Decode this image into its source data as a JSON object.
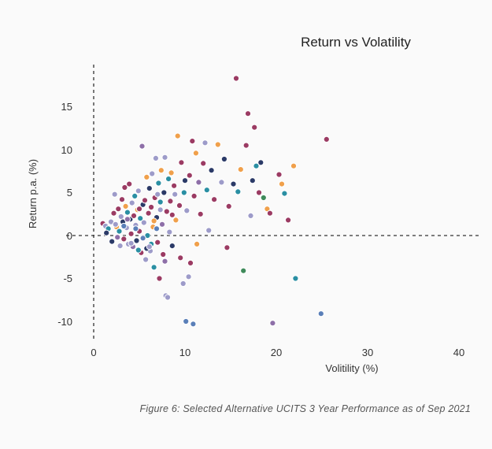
{
  "chart_data": {
    "type": "scatter",
    "title": "Return vs Volatility",
    "xlabel": "Volitility (%)",
    "ylabel": "Return p.a. (%)",
    "xlim": [
      0,
      43
    ],
    "ylim": [
      -12,
      20
    ],
    "xticks": [
      "0",
      "10",
      "20",
      "30",
      "40"
    ],
    "yticks": [
      "15",
      "10",
      "5",
      "0",
      "-5",
      "-10"
    ],
    "grid": false,
    "legend": "none",
    "colors": {
      "maroon": "#9b3b63",
      "orange": "#f0a04b",
      "navy": "#2b3a67",
      "teal": "#2a8fa3",
      "lavender": "#9d9bc9",
      "purple": "#8e6fa8",
      "green": "#3f8a5a",
      "blue": "#5a7fb8"
    },
    "points": [
      [
        1.0,
        1.4,
        "maroon"
      ],
      [
        1.3,
        1.1,
        "lavender"
      ],
      [
        1.6,
        0.8,
        "teal"
      ],
      [
        1.4,
        0.3,
        "navy"
      ],
      [
        1.9,
        1.6,
        "lavender"
      ],
      [
        2.0,
        -0.7,
        "navy"
      ],
      [
        2.2,
        2.6,
        "maroon"
      ],
      [
        2.3,
        4.8,
        "lavender"
      ],
      [
        2.5,
        1.0,
        "orange"
      ],
      [
        2.6,
        -0.2,
        "purple"
      ],
      [
        2.7,
        3.1,
        "maroon"
      ],
      [
        2.8,
        0.5,
        "teal"
      ],
      [
        2.9,
        -1.2,
        "lavender"
      ],
      [
        3.0,
        2.2,
        "lavender"
      ],
      [
        3.1,
        4.2,
        "maroon"
      ],
      [
        3.2,
        1.6,
        "navy"
      ],
      [
        3.3,
        -0.4,
        "maroon"
      ],
      [
        3.4,
        5.6,
        "maroon"
      ],
      [
        3.5,
        3.4,
        "orange"
      ],
      [
        3.6,
        0.9,
        "lavender"
      ],
      [
        3.7,
        2.7,
        "teal"
      ],
      [
        3.8,
        -1.0,
        "lavender"
      ],
      [
        3.9,
        6.0,
        "maroon"
      ],
      [
        4.0,
        1.9,
        "navy"
      ],
      [
        4.1,
        0.2,
        "maroon"
      ],
      [
        4.2,
        3.8,
        "lavender"
      ],
      [
        4.3,
        -1.3,
        "purple"
      ],
      [
        4.4,
        2.3,
        "maroon"
      ],
      [
        4.5,
        4.6,
        "teal"
      ],
      [
        4.6,
        1.2,
        "lavender"
      ],
      [
        4.7,
        -0.6,
        "navy"
      ],
      [
        4.8,
        3.0,
        "orange"
      ],
      [
        4.9,
        5.2,
        "lavender"
      ],
      [
        5.0,
        0.5,
        "maroon"
      ],
      [
        5.1,
        2.0,
        "teal"
      ],
      [
        5.2,
        -2.0,
        "maroon"
      ],
      [
        5.3,
        10.4,
        "purple"
      ],
      [
        5.4,
        3.6,
        "navy"
      ],
      [
        5.5,
        1.5,
        "lavender"
      ],
      [
        5.6,
        4.1,
        "maroon"
      ],
      [
        5.7,
        -2.8,
        "lavender"
      ],
      [
        5.8,
        6.8,
        "orange"
      ],
      [
        5.9,
        0.0,
        "teal"
      ],
      [
        6.0,
        2.6,
        "maroon"
      ],
      [
        6.1,
        5.5,
        "navy"
      ],
      [
        6.2,
        -1.8,
        "lavender"
      ],
      [
        6.3,
        3.3,
        "maroon"
      ],
      [
        6.4,
        7.2,
        "lavender"
      ],
      [
        6.5,
        1.0,
        "orange"
      ],
      [
        6.6,
        -3.7,
        "teal"
      ],
      [
        6.7,
        4.4,
        "maroon"
      ],
      [
        6.8,
        9.0,
        "lavender"
      ],
      [
        6.9,
        2.1,
        "navy"
      ],
      [
        7.0,
        -0.8,
        "maroon"
      ],
      [
        7.1,
        6.1,
        "teal"
      ],
      [
        7.2,
        -5.0,
        "maroon"
      ],
      [
        7.3,
        3.0,
        "lavender"
      ],
      [
        7.4,
        7.6,
        "orange"
      ],
      [
        7.5,
        1.3,
        "purple"
      ],
      [
        7.6,
        -2.2,
        "maroon"
      ],
      [
        7.7,
        5.0,
        "navy"
      ],
      [
        7.8,
        9.1,
        "lavender"
      ],
      [
        7.9,
        -7.0,
        "lavender"
      ],
      [
        8.0,
        2.8,
        "maroon"
      ],
      [
        8.1,
        -7.2,
        "lavender"
      ],
      [
        8.2,
        6.6,
        "teal"
      ],
      [
        8.3,
        0.4,
        "lavender"
      ],
      [
        8.4,
        4.0,
        "maroon"
      ],
      [
        8.5,
        7.3,
        "orange"
      ],
      [
        8.6,
        -1.2,
        "navy"
      ],
      [
        8.8,
        5.8,
        "maroon"
      ],
      [
        9.0,
        1.8,
        "orange"
      ],
      [
        9.2,
        11.6,
        "orange"
      ],
      [
        9.4,
        3.5,
        "maroon"
      ],
      [
        9.5,
        -2.6,
        "maroon"
      ],
      [
        9.6,
        8.5,
        "maroon"
      ],
      [
        9.8,
        -5.6,
        "lavender"
      ],
      [
        10.0,
        6.4,
        "navy"
      ],
      [
        10.1,
        -10.0,
        "blue"
      ],
      [
        10.2,
        2.9,
        "lavender"
      ],
      [
        10.4,
        -4.8,
        "lavender"
      ],
      [
        10.5,
        7.0,
        "maroon"
      ],
      [
        10.6,
        -3.2,
        "maroon"
      ],
      [
        10.8,
        11.0,
        "maroon"
      ],
      [
        10.9,
        -10.3,
        "blue"
      ],
      [
        11.0,
        4.6,
        "maroon"
      ],
      [
        11.2,
        9.6,
        "orange"
      ],
      [
        11.3,
        -1.0,
        "orange"
      ],
      [
        11.5,
        6.2,
        "purple"
      ],
      [
        11.7,
        2.5,
        "maroon"
      ],
      [
        12.0,
        8.4,
        "maroon"
      ],
      [
        12.2,
        10.8,
        "lavender"
      ],
      [
        12.4,
        5.3,
        "teal"
      ],
      [
        12.6,
        0.6,
        "lavender"
      ],
      [
        12.9,
        7.6,
        "navy"
      ],
      [
        13.2,
        4.2,
        "maroon"
      ],
      [
        13.6,
        10.6,
        "orange"
      ],
      [
        14.0,
        6.2,
        "lavender"
      ],
      [
        14.3,
        8.9,
        "navy"
      ],
      [
        14.6,
        -1.4,
        "maroon"
      ],
      [
        14.8,
        3.4,
        "maroon"
      ],
      [
        15.3,
        6.0,
        "navy"
      ],
      [
        15.6,
        18.3,
        "maroon"
      ],
      [
        15.8,
        5.1,
        "teal"
      ],
      [
        16.1,
        7.7,
        "orange"
      ],
      [
        16.4,
        -4.1,
        "green"
      ],
      [
        16.7,
        10.5,
        "maroon"
      ],
      [
        16.9,
        14.2,
        "maroon"
      ],
      [
        17.2,
        2.3,
        "lavender"
      ],
      [
        17.4,
        6.4,
        "navy"
      ],
      [
        17.6,
        12.6,
        "maroon"
      ],
      [
        17.8,
        8.1,
        "teal"
      ],
      [
        18.1,
        5.0,
        "maroon"
      ],
      [
        18.3,
        8.5,
        "navy"
      ],
      [
        18.6,
        4.4,
        "green"
      ],
      [
        19.0,
        3.1,
        "orange"
      ],
      [
        19.3,
        2.6,
        "maroon"
      ],
      [
        19.6,
        -10.2,
        "purple"
      ],
      [
        20.3,
        7.1,
        "maroon"
      ],
      [
        20.6,
        6.0,
        "orange"
      ],
      [
        20.9,
        4.9,
        "teal"
      ],
      [
        21.3,
        1.8,
        "maroon"
      ],
      [
        21.9,
        8.1,
        "orange"
      ],
      [
        22.1,
        -5.0,
        "teal"
      ],
      [
        24.9,
        -9.1,
        "blue"
      ],
      [
        25.5,
        11.2,
        "maroon"
      ],
      [
        6.3,
        -1.0,
        "teal"
      ],
      [
        5.4,
        -0.3,
        "blue"
      ],
      [
        6.9,
        0.8,
        "blue"
      ],
      [
        4.6,
        0.8,
        "blue"
      ],
      [
        3.3,
        1.1,
        "blue"
      ],
      [
        7.8,
        -3.0,
        "purple"
      ],
      [
        8.9,
        4.8,
        "lavender"
      ],
      [
        9.9,
        5.0,
        "teal"
      ],
      [
        6.6,
        1.7,
        "orange"
      ],
      [
        5.8,
        -1.5,
        "navy"
      ],
      [
        4.1,
        -0.9,
        "lavender"
      ],
      [
        7.3,
        3.9,
        "teal"
      ],
      [
        5.0,
        3.1,
        "maroon"
      ],
      [
        3.7,
        1.9,
        "purple"
      ],
      [
        2.4,
        1.3,
        "lavender"
      ],
      [
        6.1,
        -1.3,
        "lavender"
      ],
      [
        8.6,
        2.4,
        "maroon"
      ],
      [
        7.0,
        4.8,
        "lavender"
      ],
      [
        4.9,
        -1.7,
        "teal"
      ]
    ]
  },
  "caption": "Figure 6: Selected Alternative UCITS 3 Year Performance as of Sep 2021"
}
